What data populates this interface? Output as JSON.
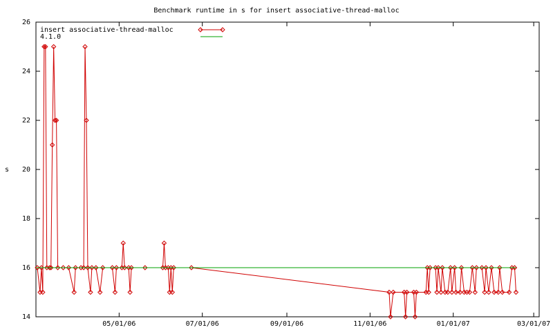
{
  "chart_data": {
    "type": "line",
    "title": "Benchmark runtime in s for insert associative-thread-malloc",
    "ylabel": "s",
    "xlim": [
      "03/01/06",
      "03/05/07"
    ],
    "xticks": [
      "05/01/06",
      "07/01/06",
      "09/01/06",
      "11/01/06",
      "01/01/07",
      "03/01/07"
    ],
    "ylim": [
      14,
      26
    ],
    "yticks": [
      14,
      16,
      18,
      20,
      22,
      24,
      26
    ],
    "legend": "top-left",
    "series": [
      {
        "name": "insert associative-thread-malloc",
        "color": "#d00000",
        "markers": true,
        "x": [
          "03/02/06",
          "03/04/06",
          "03/05/06",
          "03/06/06",
          "03/07/06",
          "03/08/06",
          "03/09/06",
          "03/11/06",
          "03/12/06",
          "03/13/06",
          "03/14/06",
          "03/15/06",
          "03/16/06",
          "03/17/06",
          "03/21/06",
          "03/25/06",
          "03/29/06",
          "03/30/06",
          "04/03/06",
          "04/05/06",
          "04/06/06",
          "04/07/06",
          "04/08/06",
          "04/10/06",
          "04/11/06",
          "04/14/06",
          "04/17/06",
          "04/19/06",
          "04/26/06",
          "04/28/06",
          "04/29/06",
          "05/03/06",
          "05/04/06",
          "05/05/06",
          "05/08/06",
          "05/09/06",
          "05/10/06",
          "05/20/06",
          "06/02/06",
          "06/03/06",
          "06/04/06",
          "06/06/06",
          "06/07/06",
          "06/08/06",
          "06/09/06",
          "06/10/06",
          "06/23/06",
          "11/15/06",
          "11/16/06",
          "11/18/06",
          "11/26/06",
          "11/27/06",
          "11/28/06",
          "12/03/06",
          "12/04/06",
          "12/05/06",
          "12/12/06",
          "12/13/06",
          "12/14/06",
          "12/15/06",
          "12/19/06",
          "12/20/06",
          "12/21/06",
          "12/23/06",
          "12/24/06",
          "12/26/06",
          "12/28/06",
          "12/30/06",
          "12/31/06",
          "01/02/07",
          "01/03/07",
          "01/06/07",
          "01/07/07",
          "01/09/07",
          "01/11/07",
          "01/13/07",
          "01/15/07",
          "01/17/07",
          "01/18/07",
          "01/22/07",
          "01/24/07",
          "01/25/07",
          "01/27/07",
          "01/29/07",
          "01/31/07",
          "02/03/07",
          "02/04/07",
          "02/06/07",
          "02/11/07",
          "02/13/07",
          "02/15/07",
          "02/16/07"
        ],
        "values": [
          16,
          15,
          16,
          15,
          25,
          25,
          16,
          16,
          16,
          21,
          25,
          22,
          22,
          16,
          16,
          16,
          15,
          16,
          16,
          16,
          25,
          22,
          16,
          15,
          16,
          16,
          15,
          16,
          16,
          15,
          16,
          16,
          17,
          16,
          16,
          15,
          16,
          16,
          16,
          17,
          16,
          16,
          15,
          16,
          15,
          16,
          16,
          15,
          14,
          15,
          15,
          14,
          15,
          15,
          14,
          15,
          15,
          16,
          15,
          16,
          16,
          15,
          16,
          15,
          16,
          15,
          15,
          16,
          15,
          16,
          15,
          15,
          16,
          15,
          15,
          15,
          16,
          15,
          16,
          16,
          15,
          16,
          15,
          16,
          15,
          15,
          16,
          15,
          15,
          16,
          16,
          15
        ]
      },
      {
        "name": "4.1.0",
        "color": "#00a000",
        "markers": false,
        "x": [
          "03/01/06",
          "02/16/07"
        ],
        "values": [
          16,
          16
        ]
      }
    ]
  }
}
